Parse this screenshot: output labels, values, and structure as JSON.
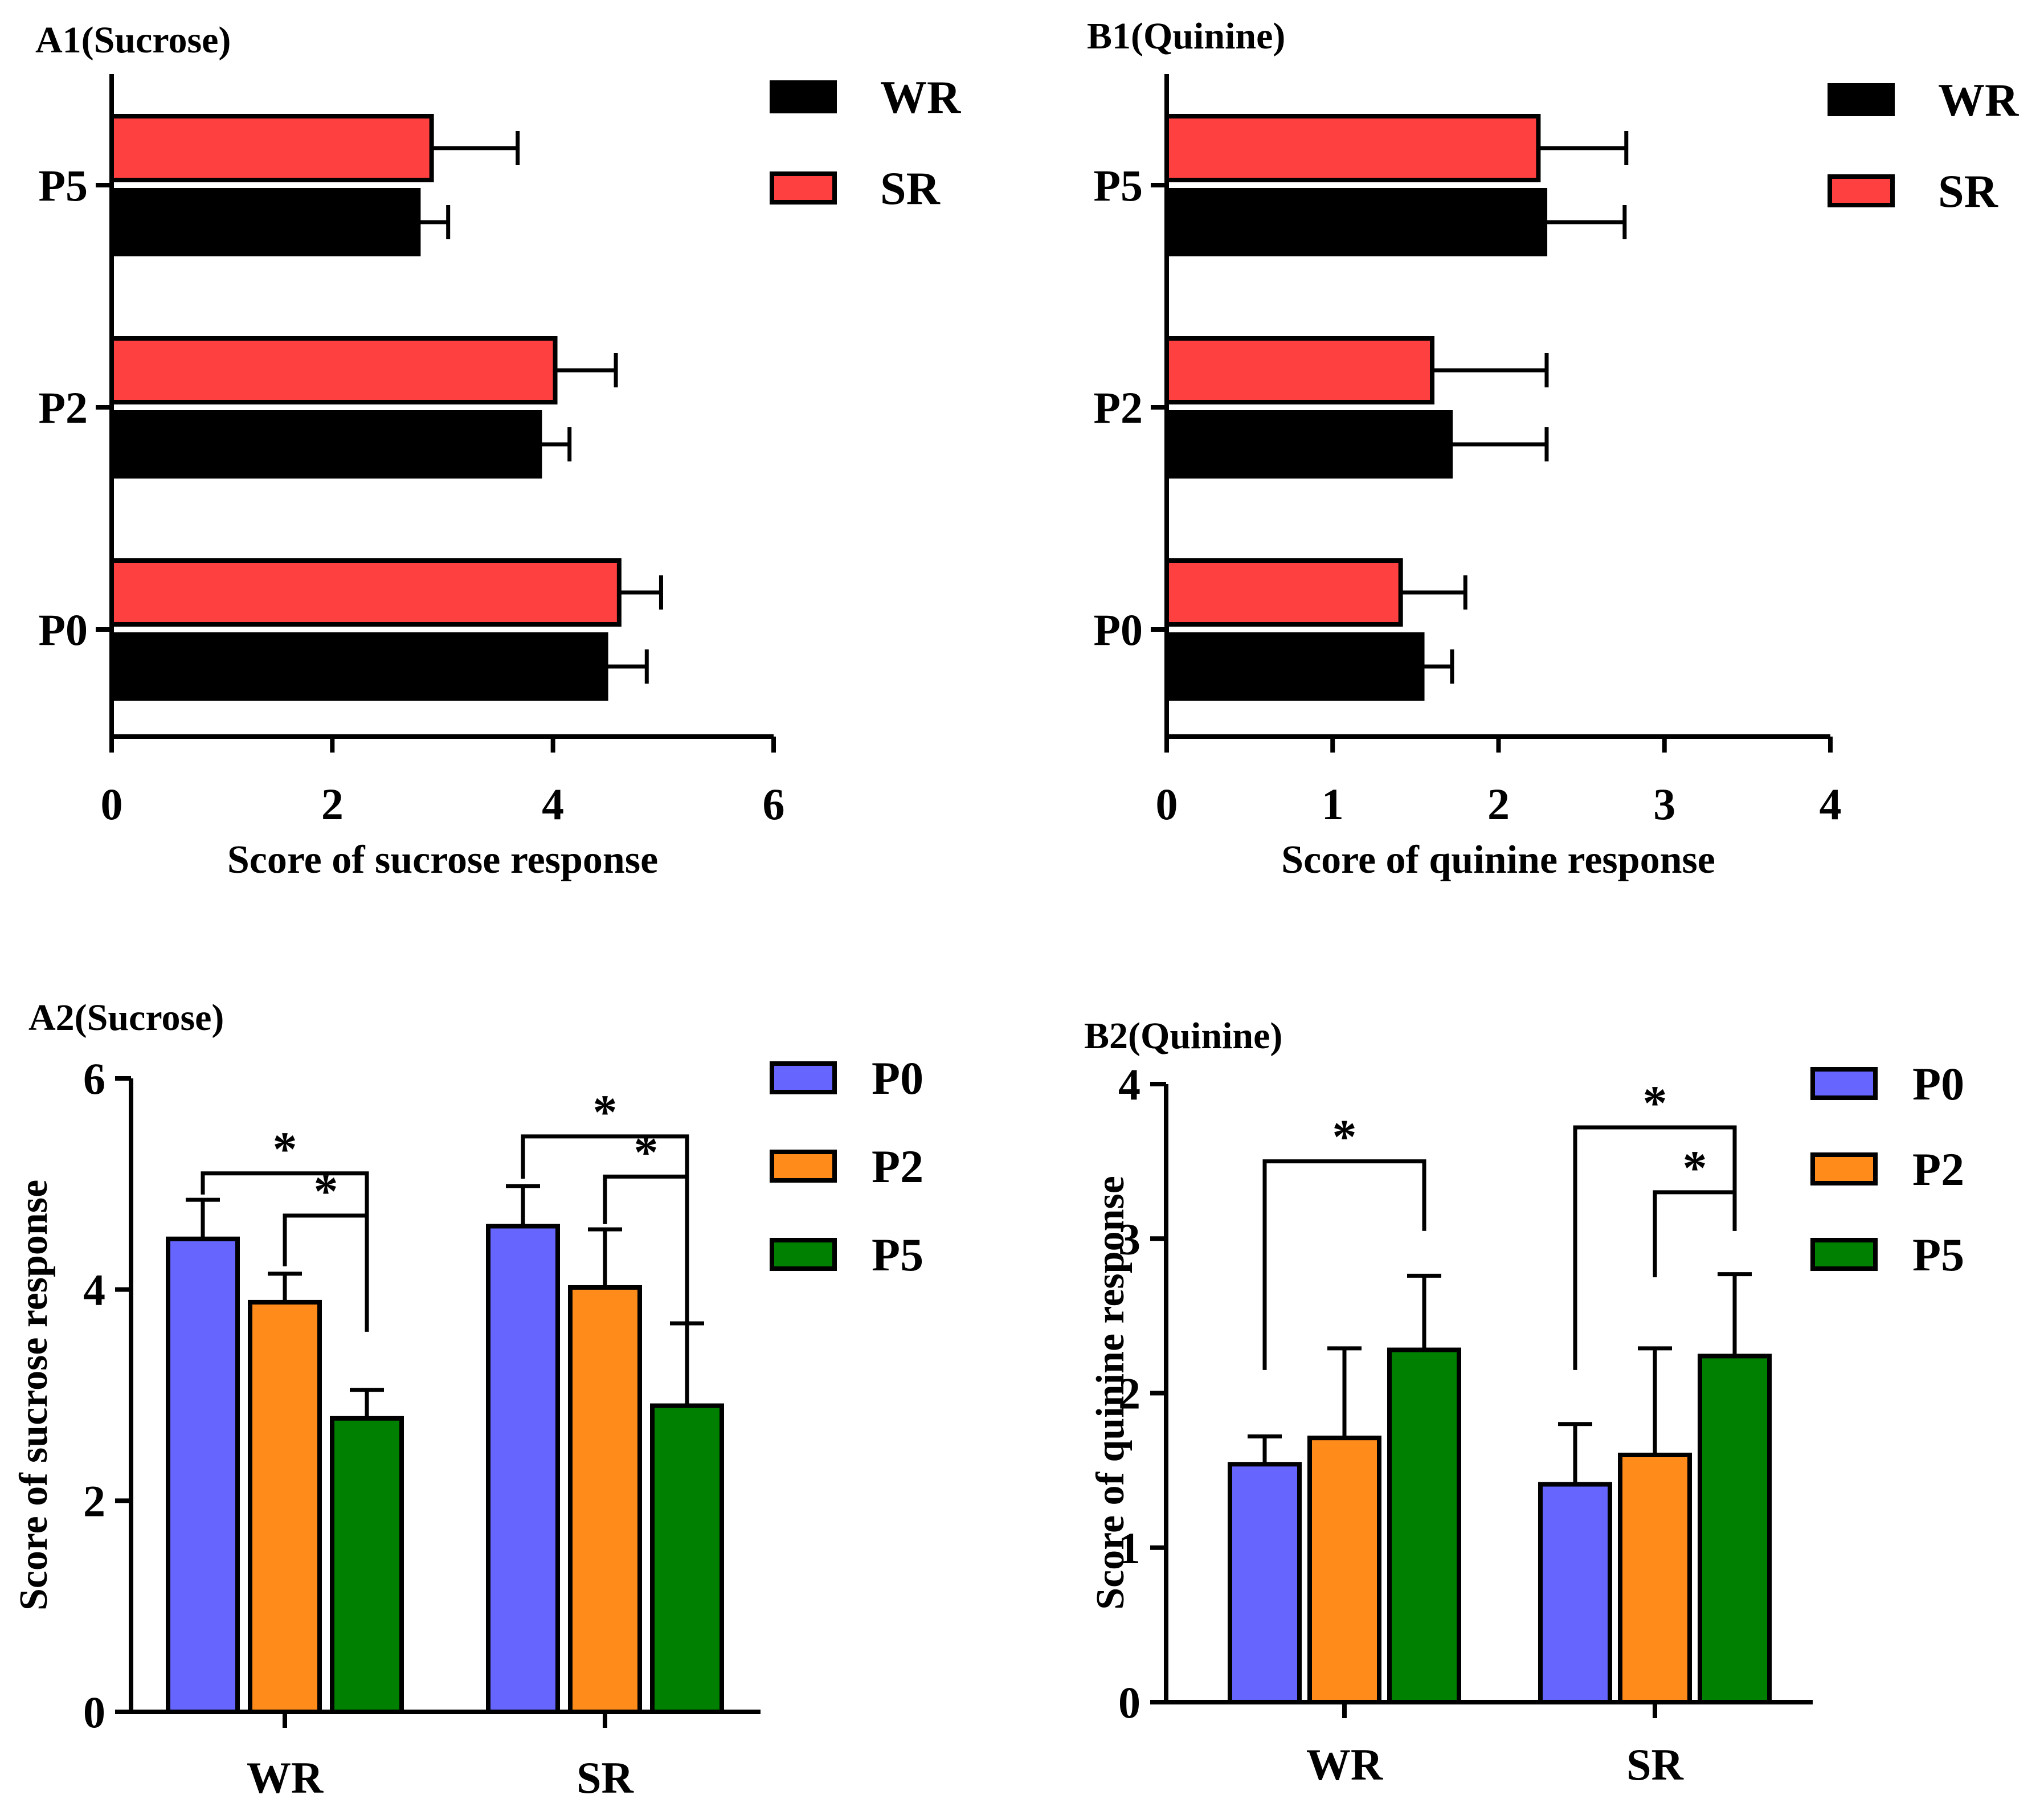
{
  "chart_data": [
    {
      "id": "A1",
      "type": "bar",
      "orientation": "horizontal",
      "title": "A1(Sucrose)",
      "xlabel": "Score of sucrose response",
      "ylabel": "",
      "xlim": [
        0,
        6
      ],
      "xticks": [
        "0",
        "2",
        "4",
        "6"
      ],
      "categories": [
        "P5",
        "P2",
        "P0"
      ],
      "series": [
        {
          "name": "SR",
          "color": "#ff4040",
          "values": [
            2.9,
            4.02,
            4.6
          ],
          "errors": [
            0.78,
            0.55,
            0.38
          ]
        },
        {
          "name": "WR",
          "color": "#000000",
          "values": [
            2.78,
            3.88,
            4.48
          ],
          "errors": [
            0.27,
            0.27,
            0.37
          ]
        }
      ],
      "legend": [
        {
          "name": "WR",
          "color": "#000000"
        },
        {
          "name": "SR",
          "color": "#ff4040"
        }
      ]
    },
    {
      "id": "B1",
      "type": "bar",
      "orientation": "horizontal",
      "title": "B1(Quinine)",
      "xlabel": "Score of quinine response",
      "ylabel": "",
      "xlim": [
        0,
        4
      ],
      "xticks": [
        "0",
        "1",
        "2",
        "3",
        "4"
      ],
      "categories": [
        "P5",
        "P2",
        "P0"
      ],
      "series": [
        {
          "name": "SR",
          "color": "#ff4040",
          "values": [
            2.24,
            1.6,
            1.41
          ],
          "errors": [
            0.53,
            0.69,
            0.39
          ]
        },
        {
          "name": "WR",
          "color": "#000000",
          "values": [
            2.28,
            1.71,
            1.54
          ],
          "errors": [
            0.48,
            0.58,
            0.18
          ]
        }
      ],
      "legend": [
        {
          "name": "WR",
          "color": "#000000"
        },
        {
          "name": "SR",
          "color": "#ff4040"
        }
      ]
    },
    {
      "id": "A2",
      "type": "bar",
      "orientation": "vertical",
      "title": "A2(Sucrose)",
      "xlabel": "",
      "ylabel": "Score of sucrose response",
      "ylim": [
        0,
        6
      ],
      "yticks": [
        "0",
        "2",
        "4",
        "6"
      ],
      "categories": [
        "WR",
        "SR"
      ],
      "series": [
        {
          "name": "P0",
          "color": "#6666ff",
          "values": [
            4.48,
            4.6
          ],
          "errors": [
            0.37,
            0.38
          ]
        },
        {
          "name": "P2",
          "color": "#ff8c1a",
          "values": [
            3.88,
            4.02
          ],
          "errors": [
            0.27,
            0.55
          ]
        },
        {
          "name": "P5",
          "color": "#008000",
          "values": [
            2.78,
            2.9
          ],
          "errors": [
            0.27,
            0.78
          ]
        }
      ],
      "significance": [
        {
          "group": "WR",
          "from": "P0",
          "to": "P5",
          "label": "*",
          "level": 5.1,
          "drop_from": 4.9,
          "drop_to": 3.6
        },
        {
          "group": "WR",
          "from": "P2",
          "to": "P5",
          "label": "*",
          "level": 4.7,
          "drop_from": 4.22,
          "drop_to": 3.6
        },
        {
          "group": "SR",
          "from": "P0",
          "to": "P5",
          "label": "*",
          "level": 5.45,
          "drop_from": 5.05,
          "drop_to": 3.25
        },
        {
          "group": "SR",
          "from": "P2",
          "to": "P5",
          "label": "*",
          "level": 5.07,
          "drop_from": 4.62,
          "drop_to": 3.25
        }
      ],
      "legend": [
        {
          "name": "P0",
          "color": "#6666ff"
        },
        {
          "name": "P2",
          "color": "#ff8c1a"
        },
        {
          "name": "P5",
          "color": "#008000"
        }
      ]
    },
    {
      "id": "B2",
      "type": "bar",
      "orientation": "vertical",
      "title": "B2(Quinine)",
      "xlabel": "",
      "ylabel": "Score of quinine response",
      "ylim": [
        0,
        4
      ],
      "yticks": [
        "0",
        "1",
        "2",
        "3",
        "4"
      ],
      "categories": [
        "WR",
        "SR"
      ],
      "series": [
        {
          "name": "P0",
          "color": "#6666ff",
          "values": [
            1.54,
            1.41
          ],
          "errors": [
            0.18,
            0.39
          ]
        },
        {
          "name": "P2",
          "color": "#ff8c1a",
          "values": [
            1.71,
            1.6
          ],
          "errors": [
            0.58,
            0.69
          ]
        },
        {
          "name": "P5",
          "color": "#008000",
          "values": [
            2.28,
            2.24
          ],
          "errors": [
            0.48,
            0.53
          ]
        }
      ],
      "significance": [
        {
          "group": "WR",
          "from": "P0",
          "to": "P5",
          "label": "*",
          "level": 3.5,
          "drop_from": 2.15,
          "drop_to": 3.05
        },
        {
          "group": "SR",
          "from": "P0",
          "to": "P5",
          "label": "*",
          "level": 3.72,
          "drop_from": 2.15,
          "drop_to": 3.05
        },
        {
          "group": "SR",
          "from": "P2",
          "to": "P5",
          "label": "*",
          "level": 3.3,
          "drop_from": 2.75,
          "drop_to": 3.05
        }
      ],
      "legend": [
        {
          "name": "P0",
          "color": "#6666ff"
        },
        {
          "name": "P2",
          "color": "#ff8c1a"
        },
        {
          "name": "P5",
          "color": "#008000"
        }
      ]
    }
  ]
}
